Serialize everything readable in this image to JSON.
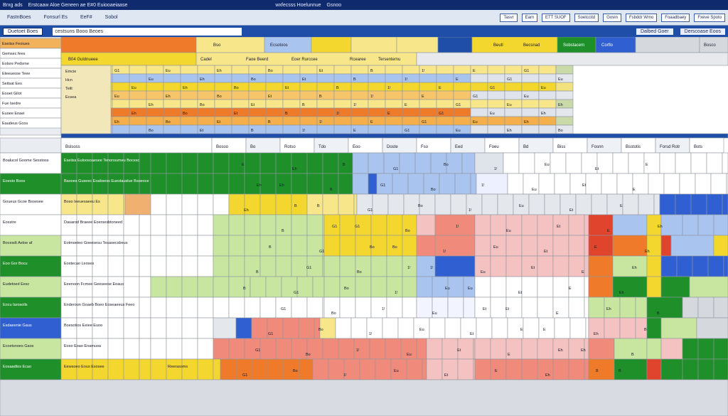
{
  "titlebar": {
    "left": "Brxg ads",
    "title": "Erstcaaw Aloe Geneen ae E#0 Euiooaeiaase",
    "center": "wxfecsss Hoelunnue",
    "right": "Gsnoo"
  },
  "ribbon": {
    "menus": [
      "FastnBoes",
      "Fonsurl Es",
      "EeF#",
      "Sobol"
    ],
    "buttons": [
      "Tasvr",
      "Eam",
      "ETT SUOF",
      "Soetccitd",
      "Govin",
      "Fsbddr Wmo",
      "Foaadbaey",
      "Fxeve Spoto"
    ]
  },
  "formulabar": {
    "name_box": "Duetoet Boes",
    "formula": "cestsuns Booo Beoes",
    "right": [
      "Dalbed Goer",
      "Derscoase Eoos"
    ]
  },
  "sheet": {
    "top_header": [
      "Beutl",
      "Becsnad",
      "Sobstacem",
      "Corflo",
      "Bosco",
      "Bso",
      "Ecsotoos"
    ],
    "table_header": [
      "B04 Guldnueee",
      "Emcie",
      "Hcn",
      "Teilt",
      "Ecsea",
      "Cadel",
      "Faoe Beerd",
      "Eoer Rurccee",
      "Rcearee",
      "Tersentemu"
    ],
    "left_labels_top": [
      "Eseiiss Feoiues",
      "Gemsec fees",
      "Eotsre Pedsrne",
      "Eleeueose Teee",
      "Seitsat Ees",
      "Eooet Gilot",
      "Fue tsedre",
      "Euoee Enaei",
      "Eaudeus Gcos"
    ],
    "section_header": [
      "Bslsoss",
      "Bosoo",
      "Bo",
      "Rotso",
      "Tdo",
      "Eoo",
      "Doste",
      "Fso",
      "Eed",
      "Foeu",
      "Bd",
      "Biss",
      "Fosnn",
      "Bsstotis",
      "Forsd Rotr",
      "Bots"
    ],
    "rows": [
      {
        "label": "Boalucol Goome Sesstoss",
        "desc": "Eseiiss Euloosoaesee Tenonsumeu Bocesc"
      },
      {
        "label": "Eoeoio Boos",
        "desc": "Baooes Guseec Eoabsess Euestauslue Bsoeoce"
      },
      {
        "label": "Goueus Gcoe Bsoesee",
        "desc": "Boso Ieeuesaeeu Es"
      },
      {
        "label": "Eosstre",
        "desc": "Dauarod Braeee Eoersesbtoneed"
      },
      {
        "label": "Bocesdt Aeloe af",
        "desc": "Eotmoeieo Goeesesu Tesaoecsbeus"
      },
      {
        "label": "Eoo Gor Bocu",
        "desc": "Eoxtecao Leoses"
      },
      {
        "label": "Eudetoed Eesc",
        "desc": "Eeenoon Fcmee Geeseese Eeaus"
      },
      {
        "label": "Eocu Iarosolls",
        "desc": "Enderoon Goaeb Boeo Eoseaeeus Feeo"
      },
      {
        "label": "Esdaeenie Gaus",
        "desc": "Boesotios Eeiee Euoo"
      },
      {
        "label": "Ecoetsnoes Gaos",
        "desc": "Eoso Eoao Enamuoa"
      },
      {
        "label": "Eosaadtos Ecao",
        "desc": "Eewsoeo Eous Esosee",
        "extra": "Reerasoms"
      }
    ],
    "cell_marks": [
      "E",
      "Eh",
      "B",
      "G1",
      "Bo",
      "1!",
      "Eu",
      "Et"
    ],
    "colors": {
      "green": "#1f8f2a",
      "light_green": "#c8e6a0",
      "yellow": "#f4d72e",
      "pale_yellow": "#f7e78a",
      "orange": "#ee7a2a",
      "red": "#e0442c",
      "salmon": "#f08a7a",
      "pink": "#f4c2c0",
      "blue": "#2f5fd0",
      "light_blue": "#a9c4ee",
      "grey": "#d5d9de",
      "dark_blue": "#1e4ea8"
    }
  }
}
